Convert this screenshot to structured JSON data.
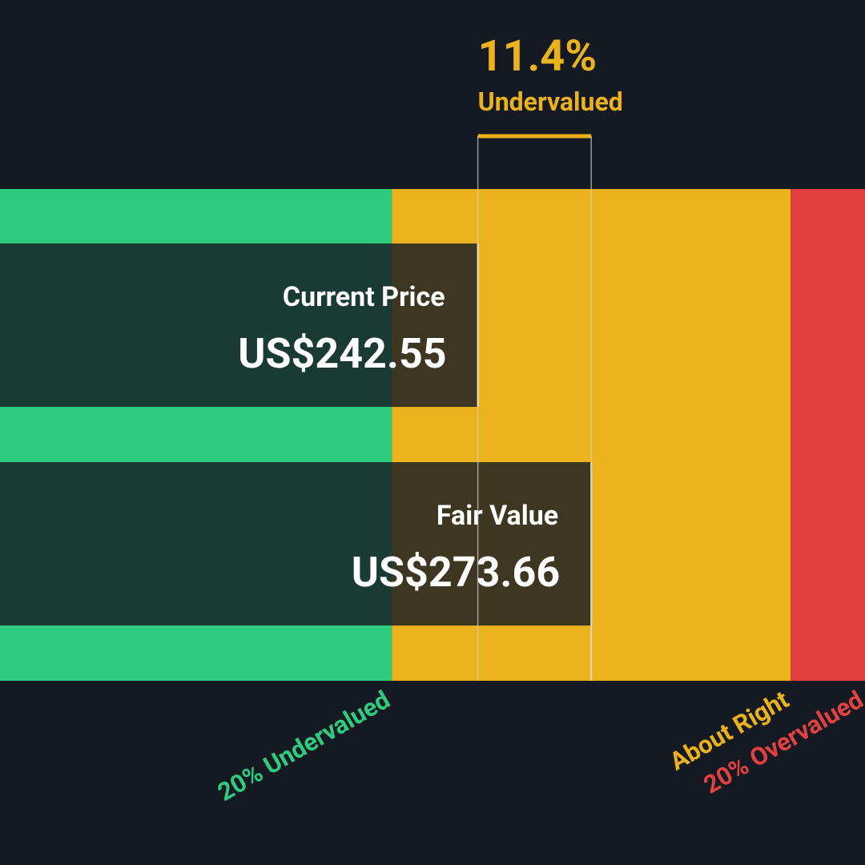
{
  "chart_data": {
    "type": "valuation",
    "categories": [
      "Current Price",
      "Fair Value"
    ],
    "values": [
      242.55,
      273.66
    ],
    "value_labels": [
      "US$242.55",
      "US$273.66"
    ],
    "xlim": [
      111.4,
      348.8
    ],
    "difference": {
      "value": 11.4,
      "label": "11.4%",
      "text": "Undervalued",
      "color": "#ecb21c"
    },
    "zones": [
      {
        "name": "20% Undervalued",
        "color": "#2ecc80",
        "range": [
          111.4,
          218.93
        ]
      },
      {
        "name": "About Right",
        "color": "#ecb21c",
        "range": [
          218.93,
          328.39
        ]
      },
      {
        "name": "20% Overvalued",
        "color": "#e34140",
        "range": [
          328.39,
          348.8
        ]
      }
    ]
  }
}
